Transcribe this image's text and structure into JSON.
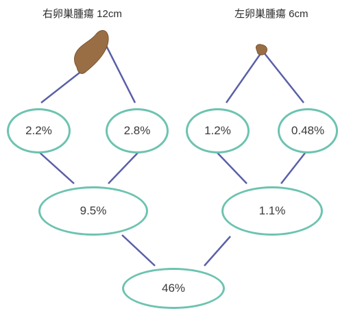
{
  "titles": {
    "right_ovary": "右卵巣腫瘍 12cm",
    "left_ovary": "左卵巣腫瘍 6cm"
  },
  "nodes": {
    "right_a": "2.2%",
    "right_b": "2.8%",
    "left_a": "1.2%",
    "left_b": "0.48%",
    "right_combined": "9.5%",
    "left_combined": "1.1%",
    "total": "46%"
  },
  "colors": {
    "node_border": "#6cc3b0",
    "edge": "#5a5fa8",
    "tumor_fill": "#9a6e45"
  }
}
